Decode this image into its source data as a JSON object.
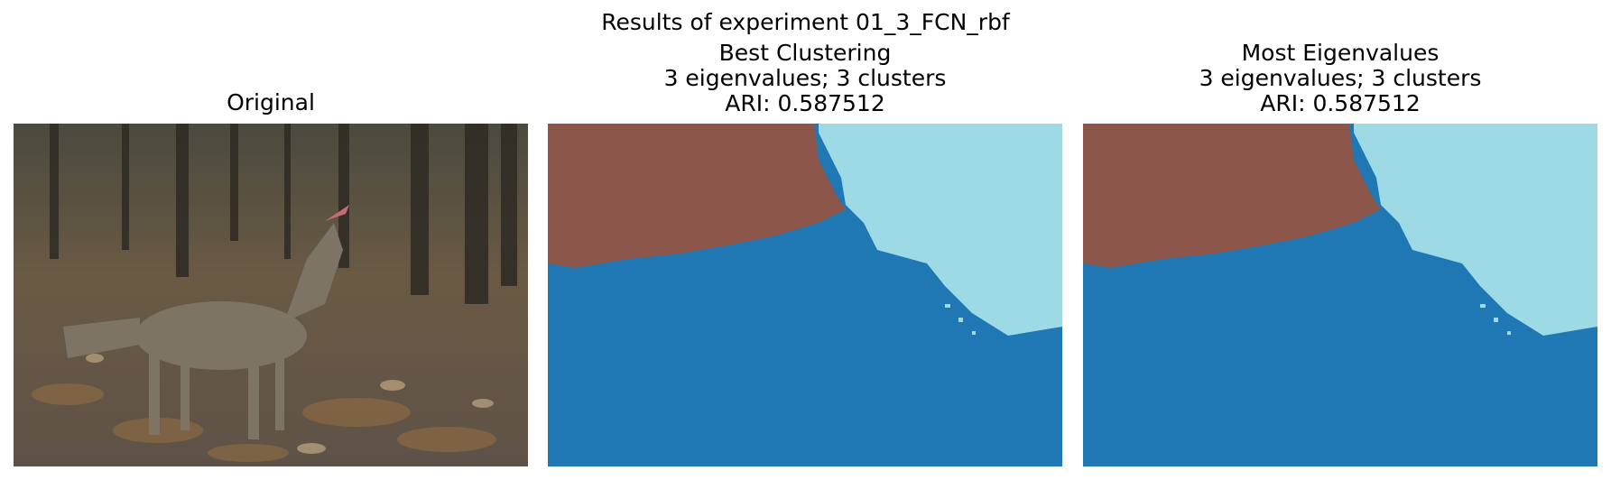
{
  "figure": {
    "suptitle": "Results of experiment 01_3_FCN_rbf"
  },
  "panels": [
    {
      "title_lines": [
        "Original"
      ]
    },
    {
      "title_lines": [
        "Best Clustering",
        "3 eigenvalues; 3 clusters",
        "ARI: 0.587512"
      ]
    },
    {
      "title_lines": [
        "Most Eigenvalues",
        "3 eigenvalues; 3 clusters",
        "ARI: 0.587512"
      ]
    }
  ],
  "colors": {
    "cluster_brown": "#8c564b",
    "cluster_light_blue": "#9edae5",
    "cluster_blue": "#1f77b4"
  }
}
